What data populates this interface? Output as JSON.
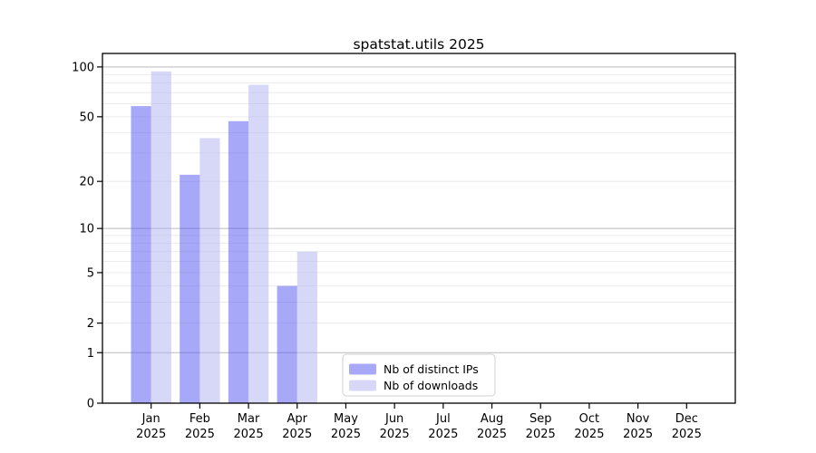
{
  "chart_data": {
    "type": "bar",
    "title": "spatstat.utils 2025",
    "y_scale": "log10(1+x)",
    "ylim": [
      0,
      120
    ],
    "y_ticks": [
      0,
      1,
      2,
      5,
      10,
      20,
      50,
      100
    ],
    "grid": "horizontal, minor lines at 2-9/20-90, major lines at 1/10/100",
    "months": [
      "Jan",
      "Feb",
      "Mar",
      "Apr",
      "May",
      "Jun",
      "Jul",
      "Aug",
      "Sep",
      "Oct",
      "Nov",
      "Dec"
    ],
    "year": "2025",
    "categories": [
      "Jan 2025",
      "Feb 2025",
      "Mar 2025",
      "Apr 2025",
      "May 2025",
      "Jun 2025",
      "Jul 2025",
      "Aug 2025",
      "Sep 2025",
      "Oct 2025",
      "Nov 2025",
      "Dec 2025"
    ],
    "series": [
      {
        "name": "Nb of distinct IPs",
        "color": "rgba(82,82,242,0.5)",
        "color_over_white": "#a8a8f8",
        "values": [
          58,
          22,
          47,
          4,
          null,
          null,
          null,
          null,
          null,
          null,
          null,
          null
        ]
      },
      {
        "name": "Nb of downloads",
        "color": "rgba(176,176,242,0.5)",
        "color_over_white": "#d7d7f8",
        "values": [
          94,
          37,
          78,
          7,
          null,
          null,
          null,
          null,
          null,
          null,
          null,
          null
        ]
      }
    ],
    "legend_position": "lower center inside plot"
  },
  "colors": {
    "grid_minor": "#ebebeb",
    "grid_major": "#c2c2c2",
    "frame": "#000000",
    "legend_border": "#d0d0d0",
    "background": "#ffffff"
  }
}
